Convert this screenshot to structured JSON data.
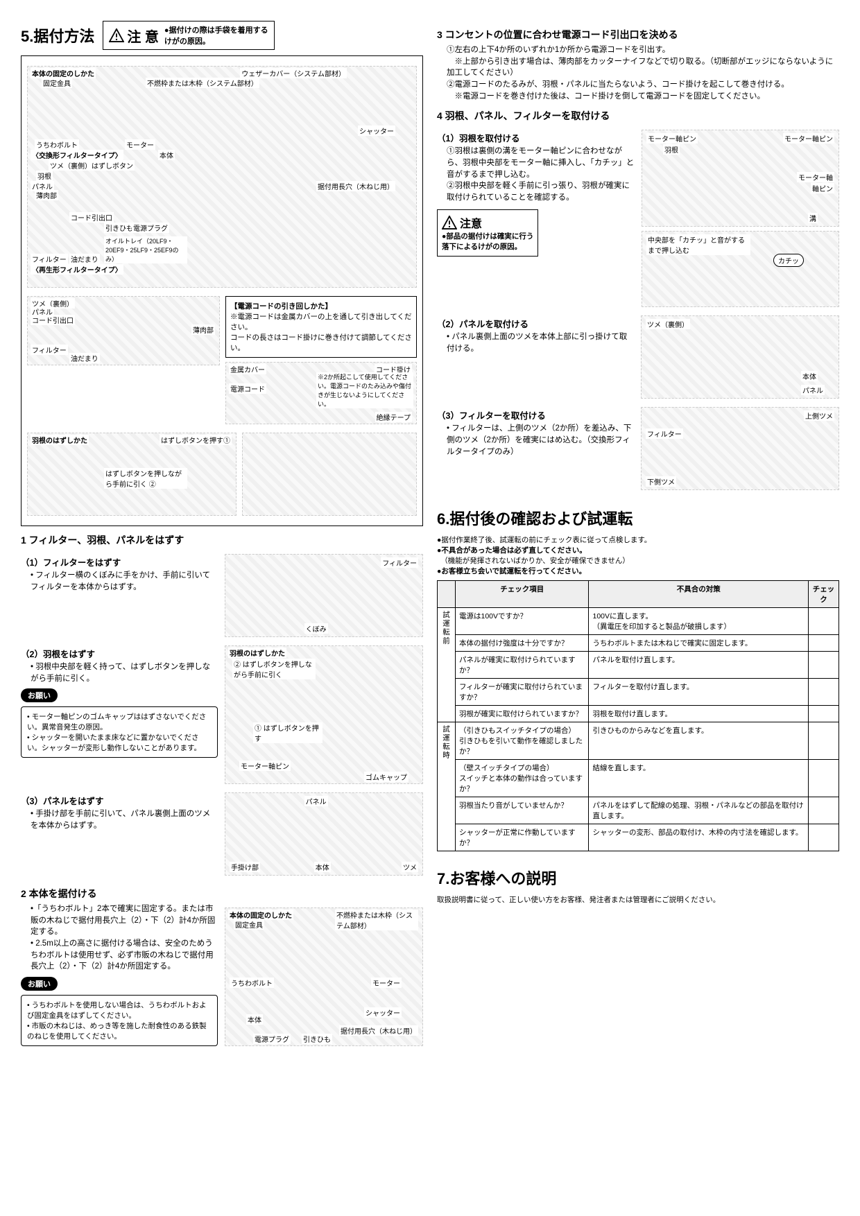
{
  "s5": {
    "title": "5.据付方法",
    "caution_label": "注 意",
    "caution_text": "●据付けの際は手袋を着用する\nけがの原因。",
    "big_diagram_labels": {
      "top_row": "本体の固定のしかた",
      "kotei": "固定金具",
      "weather": "ウェザーカバー（システム部材）",
      "funen": "不燃枠または木枠（システム部材）",
      "uchiwa": "うちわボルト",
      "motor": "モーター",
      "shutter": "シャッター",
      "exchange": "〈交換形フィルタータイプ〉",
      "tsume": "ツメ（裏側）",
      "hazushi": "はずしボタン",
      "hane": "羽根",
      "panel": "パネル",
      "usuniku": "薄肉部",
      "cord": "コード引出口",
      "hikihimo": "引きひも",
      "plug": "電源プラグ",
      "hontai": "本体",
      "oil": "オイルトレイ（20LF9・20EF9・25LF9・25EF9のみ）",
      "filter": "フィルター",
      "aburadamari": "油だまり",
      "saisei": "〈再生形フィルタータイプ〉",
      "souzuke": "据付用長穴（木ねじ用）",
      "kinzoku": "金属カバー",
      "denso": "電源コード",
      "cordgake": "コード掛け",
      "zetsuen": "絶縁テープ",
      "cord_box_title": "【電源コードの引き回しかた】",
      "cord_box_text": "※電源コードは金属カバーの上を通して引き出してください。\nコードの長さはコード掛けに巻き付けて調節してください。",
      "cord_box_note": "※2か所起こして使用してください。電源コードのたみ込みや傷付きが生じないようにしてください。",
      "hane_hazushi_title": "羽根のはずしかた",
      "hane_step1": "はずしボタンを押す①",
      "hane_step2": "はずしボタンを押しながら手前に引く ②"
    },
    "s5_1": {
      "head": "1 フィルター、羽根、パネルをはずす",
      "p1_head": "（1）フィルターをはずす",
      "p1_text": "• フィルター横のくぼみに手をかけ、手前に引いてフィルターを本体からはずす。",
      "p1_labels": {
        "kubomi": "くぼみ",
        "filter": "フィルター"
      },
      "p2_head": "（2）羽根をはずす",
      "p2_text": "• 羽根中央部を軽く持って、はずしボタンを押しながら手前に引く。",
      "p2_labels": {
        "title": "羽根のはずしかた",
        "s2": "② はずしボタンを押しながら手前に引く",
        "s1": "① はずしボタンを押す",
        "mpin": "モーター軸ピン",
        "gum": "ゴムキャップ"
      },
      "onegai_items": [
        "• モーター軸ピンのゴムキャップははずさないでください。異常音発生の原因。",
        "• シャッターを開いたまま床などに置かないでください。シャッターが変形し動作しないことがあります。"
      ],
      "p3_head": "（3）パネルをはずす",
      "p3_text": "• 手掛け部を手前に引いて、パネル裏側上面のツメを本体からはずす。",
      "p3_labels": {
        "panel": "パネル",
        "tegake": "手掛け部",
        "hontai": "本体",
        "tsume": "ツメ"
      }
    },
    "s5_2": {
      "head": "2 本体を据付ける",
      "bullets": [
        "•「うちわボルト」2本で確実に固定する。または市販の木ねじで据付用長穴上（2）・下（2）計4か所固定する。",
        "• 2.5m以上の高さに据付ける場合は、安全のためうちわボルトは使用せず、必ず市販の木ねじで据付用長穴上（2）・下（2）計4か所固定する。"
      ],
      "onegai_items": [
        "• うちわボルトを使用しない場合は、うちわボルトおよび固定金具をはずしてください。",
        "• 市販の木ねじは、めっき等を施した耐食性のある鉄製のねじを使用してください。"
      ],
      "labels": {
        "title": "本体の固定のしかた",
        "kotei": "固定金具",
        "funen": "不燃枠または木枠（システム部材）",
        "uchiwa": "うちわボルト",
        "motor": "モーター",
        "hontai": "本体",
        "shutter": "シャッター",
        "plug": "電源プラグ",
        "himo": "引きひも",
        "souzuke": "据付用長穴（木ねじ用）"
      }
    },
    "s5_3": {
      "head": "3 コンセントの位置に合わせ電源コード引出口を決める",
      "items": [
        "①左右の上下4か所のいずれか1か所から電源コードを引出す。",
        "　※上部から引き出す場合は、薄肉部をカッターナイフなどで切り取る。（切断部がエッジにならないように加工してください）",
        "②電源コードのたるみが、羽根・パネルに当たらないよう、コード掛けを起こして巻き付ける。",
        "　※電源コードを巻き付けた後は、コード掛けを倒して電源コードを固定してください。"
      ]
    },
    "s5_4": {
      "head": "4 羽根、パネル、フィルターを取付ける",
      "p1_head": "（1）羽根を取付ける",
      "p1_items": [
        "①羽根は裏側の溝をモーター軸ピンに合わせながら、羽根中央部をモーター軸に挿入し、「カチッ」と音がするまで押し込む。",
        "②羽根中央部を軽く手前に引っ張り、羽根が確実に取付けられていることを確認する。"
      ],
      "p1_labels": {
        "mpin": "モーター軸ピン",
        "hane": "羽根",
        "mjiku": "モーター軸",
        "jpin": "軸ピン",
        "mizo": "溝",
        "kachi": "カチッ",
        "oshikomu": "中央部を「カチッ」と音がするまで押し込む"
      },
      "caution_label": "注意",
      "caution_text": "●部品の据付けは確実に行う\n落下によるけがの原因。",
      "p2_head": "（2）パネルを取付ける",
      "p2_text": "• パネル裏側上面のツメを本体上部に引っ掛けて取付ける。",
      "p2_labels": {
        "tsume": "ツメ（裏側）",
        "hontai": "本体",
        "panel": "パネル"
      },
      "p3_head": "（3）フィルターを取付ける",
      "p3_text": "• フィルターは、上側のツメ（2か所）を差込み、下側のツメ（2か所）を確実にはめ込む。（交換形フィルタータイプのみ）",
      "p3_labels": {
        "ue_tsume": "上側ツメ",
        "filter": "フィルター",
        "shita_tsume": "下側ツメ"
      }
    }
  },
  "s6": {
    "title": "6.据付後の確認および試運転",
    "intro": [
      "●据付作業終了後、試運転の前にチェック表に従って点検します。",
      "●不具合があった場合は必ず直してください。",
      "　（機能が発揮されないばかりか、安全が確保できません）",
      "●お客様立ち会いで試運転を行ってください。"
    ],
    "headers": [
      "",
      "チェック項目",
      "不具合の対策",
      "チェック"
    ],
    "group1": "試運転前",
    "group2": "試運転時",
    "rows1": [
      [
        "電源は100Vですか？",
        "100Vに直します。\n（異電圧を印加すると製品が破損します）"
      ],
      [
        "本体の据付け強度は十分ですか？",
        "うちわボルトまたは木ねじで確実に固定します。"
      ],
      [
        "パネルが確実に取付けられていますか？",
        "パネルを取付け直します。"
      ],
      [
        "フィルターが確実に取付けられていますか？",
        "フィルターを取付け直します。"
      ],
      [
        "羽根が確実に取付けられていますか？",
        "羽根を取付け直します。"
      ]
    ],
    "rows2": [
      [
        "（引きひもスイッチタイプの場合）\n引きひもを引いて動作を確認しましたか？",
        "引きひものからみなどを直します。"
      ],
      [
        "（壁スイッチタイプの場合）\nスイッチと本体の動作は合っていますか？",
        "結線を直します。"
      ],
      [
        "羽根当たり音がしていませんか？",
        "パネルをはずして配線の処理、羽根・パネルなどの部品を取付け直します。"
      ],
      [
        "シャッターが正常に作動していますか？",
        "シャッターの変形、部品の取付け、木枠の内寸法を確認します。"
      ]
    ]
  },
  "s7": {
    "title": "7.お客様への説明",
    "text": "取扱説明書に従って、正しい使い方をお客様、発注者または管理者にご説明ください。"
  },
  "onegai_label": "お願い"
}
